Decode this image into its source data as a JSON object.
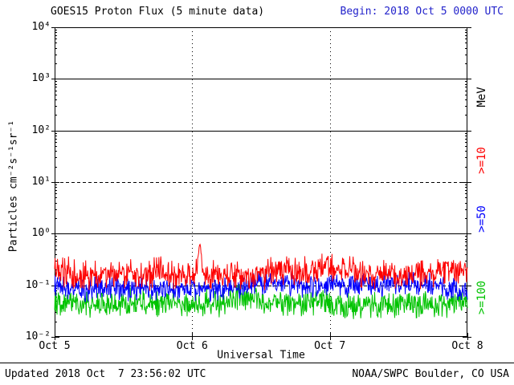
{
  "header": {
    "title": "GOES15 Proton Flux (5 minute data)",
    "begin_label": "Begin: 2018 Oct 5 0000 UTC",
    "begin_color": "#2323cb"
  },
  "footer": {
    "updated": "Updated 2018 Oct  7 23:56:02 UTC",
    "source": "NOAA/SWPC Boulder, CO USA"
  },
  "chart_data": {
    "type": "line",
    "title": "GOES15 Proton Flux (5 minute data)",
    "xlabel": "Universal Time",
    "ylabel": "Particles cm⁻²s⁻¹sr⁻¹",
    "y_scale": "log",
    "ylim": [
      0.01,
      10000
    ],
    "x_range_days": 3,
    "points_per_day": 288,
    "x_tick_labels": [
      "Oct 5",
      "Oct 6",
      "Oct 7",
      "Oct 8"
    ],
    "y_ticks": [
      {
        "label": "10⁴",
        "exp": 4
      },
      {
        "label": "10³",
        "exp": 3
      },
      {
        "label": "10²",
        "exp": 2
      },
      {
        "label": "10¹",
        "exp": 1
      },
      {
        "label": "10⁰",
        "exp": 0
      },
      {
        "label": "10⁻¹",
        "exp": -1
      },
      {
        "label": "10⁻²",
        "exp": -2
      }
    ],
    "grid": {
      "solid_y_flux": [
        1000,
        100,
        1
      ],
      "dashed_y_flux": [
        10,
        0.1
      ],
      "dotted_vertical_days": [
        1,
        2
      ]
    },
    "right_axis_labels": [
      {
        "text": "MeV",
        "color": "#000000"
      },
      {
        "text": ">=10",
        "color": "#fe0000"
      },
      {
        "text": ">=50",
        "color": "#0000fe"
      },
      {
        "text": ">=100",
        "color": "#00c300"
      }
    ],
    "series": [
      {
        "name": ">=10 MeV",
        "color": "#fe0000",
        "baseline_flux": 0.18,
        "approx_flux_range": [
          0.09,
          0.45
        ],
        "log10_jitter": 0.33,
        "seed": 1105,
        "spike": {
          "day": 1.056,
          "peak_flux": 0.62,
          "sigma_days": 0.012
        }
      },
      {
        "name": ">=50 MeV",
        "color": "#0000fe",
        "baseline_flux": 0.095,
        "approx_flux_range": [
          0.05,
          0.18
        ],
        "log10_jitter": 0.27,
        "seed": 2207
      },
      {
        "name": ">=100 MeV",
        "color": "#00c300",
        "baseline_flux": 0.047,
        "approx_flux_range": [
          0.024,
          0.095
        ],
        "log10_jitter": 0.3,
        "seed": 3309
      }
    ]
  }
}
